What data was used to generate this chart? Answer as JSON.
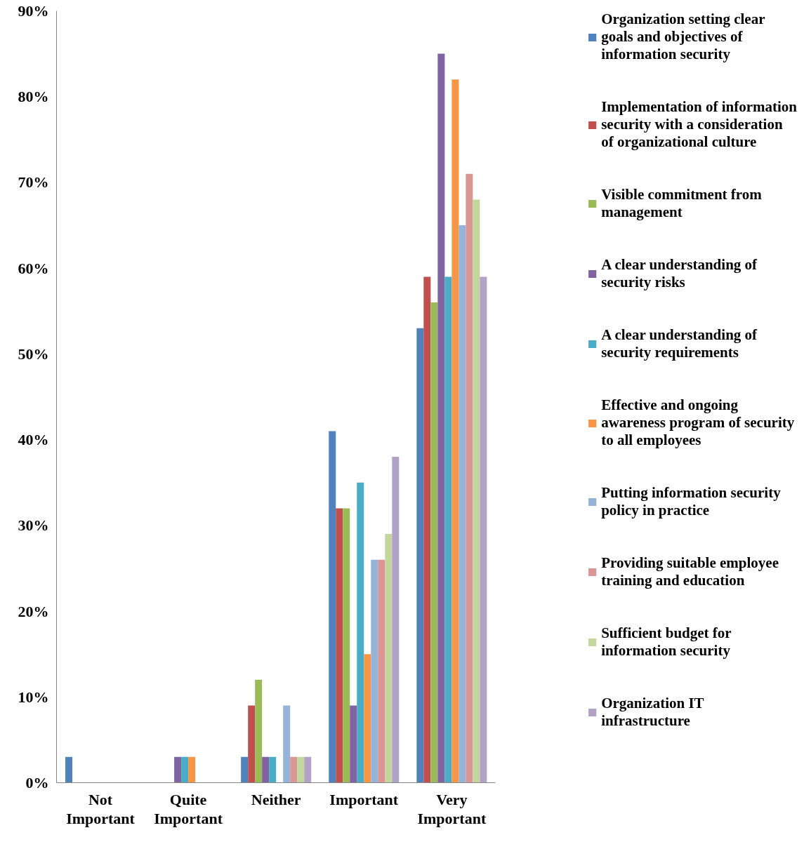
{
  "chart_data": {
    "type": "bar",
    "categories": [
      "Not Important",
      "Quite Important",
      "Neither",
      "Important",
      "Very Important"
    ],
    "ylim": [
      0,
      90
    ],
    "yticks": [
      {
        "value": 0,
        "label": "0%"
      },
      {
        "value": 10,
        "label": "10%"
      },
      {
        "value": 20,
        "label": "20%"
      },
      {
        "value": 30,
        "label": "30%"
      },
      {
        "value": 40,
        "label": "40%"
      },
      {
        "value": 50,
        "label": "50%"
      },
      {
        "value": 60,
        "label": "60%"
      },
      {
        "value": 70,
        "label": "70%"
      },
      {
        "value": 80,
        "label": "80%"
      },
      {
        "value": 90,
        "label": "90%"
      }
    ],
    "grid": false,
    "legend": "right",
    "series": [
      {
        "name": "Organization setting clear goals and objectives of information security",
        "color": "#4f81bd",
        "values": [
          3,
          0,
          3,
          41,
          53
        ]
      },
      {
        "name": "Implementation of information security with a consideration of organizational culture",
        "color": "#c0504d",
        "values": [
          0,
          0,
          9,
          32,
          59
        ]
      },
      {
        "name": "Visible commitment from management",
        "color": "#9bbb59",
        "values": [
          0,
          0,
          12,
          32,
          56
        ]
      },
      {
        "name": "A clear understanding of security risks",
        "color": "#8064a2",
        "values": [
          0,
          3,
          3,
          9,
          85
        ]
      },
      {
        "name": "A clear understanding of security requirements",
        "color": "#4bacc6",
        "values": [
          0,
          3,
          3,
          35,
          59
        ]
      },
      {
        "name": "Effective and ongoing awareness program of security to all employees",
        "color": "#f79646",
        "values": [
          0,
          3,
          0,
          15,
          82
        ]
      },
      {
        "name": "Putting information security policy in practice",
        "color": "#95b3d7",
        "values": [
          0,
          0,
          9,
          26,
          65
        ]
      },
      {
        "name": "Providing suitable employee training and education",
        "color": "#d99694",
        "values": [
          0,
          0,
          3,
          26,
          71
        ]
      },
      {
        "name": "Sufficient budget for information security",
        "color": "#c3d69b",
        "values": [
          0,
          0,
          3,
          29,
          68
        ]
      },
      {
        "name": "Organization IT infrastructure",
        "color": "#b3a2c7",
        "values": [
          0,
          0,
          3,
          38,
          59
        ]
      }
    ]
  }
}
